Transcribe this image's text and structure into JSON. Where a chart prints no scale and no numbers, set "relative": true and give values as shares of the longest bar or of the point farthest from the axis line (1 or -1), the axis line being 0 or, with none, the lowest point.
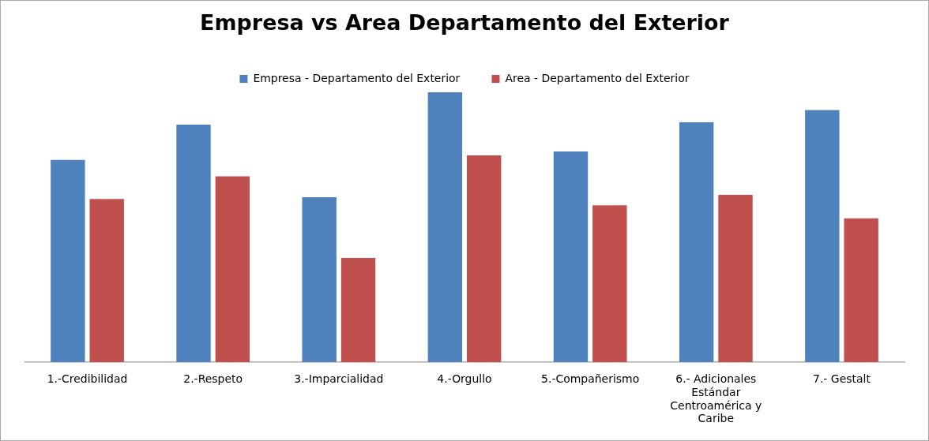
{
  "chart_data": {
    "type": "bar",
    "title": "Empresa vs Area Departamento del Exterior",
    "relative": true,
    "legend": "top",
    "grid": false,
    "categories": [
      "1.-Credibilidad",
      "2.-Respeto",
      "3.-Imparcialidad",
      "4.-Orgullo",
      "5.-Compañerismo",
      "6.- Adicionales Estándar Centroamérica y Caribe",
      "7.- Gestalt"
    ],
    "series": [
      {
        "name": "Empresa - Departamento del Exterior",
        "color": "#4f81bd",
        "values": [
          0.749,
          0.88,
          0.611,
          1,
          0.781,
          0.889,
          0.934
        ]
      },
      {
        "name": "Area - Departamento del Exterior",
        "color": "#c0504d",
        "values": [
          0.605,
          0.689,
          0.386,
          0.766,
          0.581,
          0.62,
          0.533
        ]
      }
    ]
  }
}
